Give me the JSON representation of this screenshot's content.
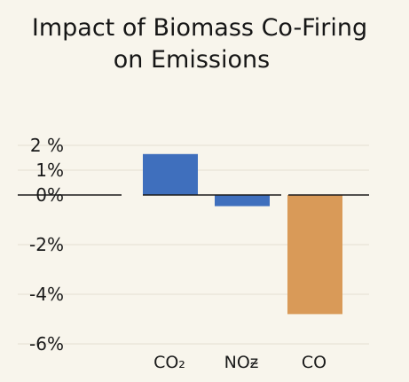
{
  "chart_data": {
    "type": "bar",
    "title_lines": [
      "Impact of Biomass Co-Firing",
      "on Emissions"
    ],
    "categories": [
      "CO₂",
      "NOᵶ",
      "CO"
    ],
    "values": [
      1.65,
      -0.45,
      -4.8
    ],
    "bar_colors": [
      "#3f6fbd",
      "#3f6fbd",
      "#d99a58"
    ],
    "y_ticks": [
      {
        "value": 2,
        "label": "2 %"
      },
      {
        "value": 1,
        "label": "1%"
      },
      {
        "value": 0,
        "label": "0%"
      },
      {
        "value": -2,
        "label": "-2%"
      },
      {
        "value": -4,
        "label": "-4%"
      },
      {
        "value": -6,
        "label": "-6%"
      }
    ],
    "ylim": [
      -6,
      2
    ],
    "grid": true,
    "legend": "none",
    "xlabel": "",
    "ylabel": ""
  }
}
